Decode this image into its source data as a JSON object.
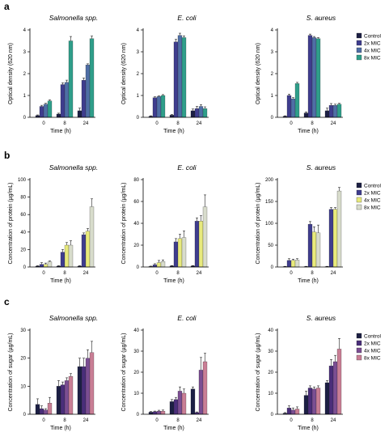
{
  "figure": {
    "panel_letters": [
      "a",
      "b",
      "c"
    ]
  },
  "chart_data": [
    {
      "id": "a1",
      "row": 0,
      "col": 0,
      "type": "bar",
      "title": "Salmonella spp.",
      "xlabel": "Time (h)",
      "ylabel": "Optical density (620 nm)",
      "categories": [
        "0",
        "8",
        "24"
      ],
      "ylim": [
        0,
        4
      ],
      "yticks": [
        0,
        1,
        2,
        3,
        4
      ],
      "series": [
        {
          "name": "Control",
          "color": "#1c1f44",
          "values": [
            0.08,
            0.15,
            0.3
          ],
          "errors": [
            0.03,
            0.04,
            0.12
          ]
        },
        {
          "name": "2x MIC",
          "color": "#3f3d8e",
          "values": [
            0.5,
            1.5,
            1.7
          ],
          "errors": [
            0.05,
            0.08,
            0.1
          ]
        },
        {
          "name": "4x MIC",
          "color": "#4f6ea5",
          "values": [
            0.6,
            1.6,
            2.4
          ],
          "errors": [
            0.04,
            0.1,
            0.05
          ]
        },
        {
          "name": "8x MIC",
          "color": "#2f9e8a",
          "values": [
            0.75,
            3.5,
            3.6
          ],
          "errors": [
            0.05,
            0.2,
            0.12
          ]
        }
      ]
    },
    {
      "id": "a2",
      "row": 0,
      "col": 1,
      "type": "bar",
      "title": "E. coli",
      "xlabel": "Time (h)",
      "ylabel": "Optical density (620 nm)",
      "categories": [
        "0",
        "8",
        "24"
      ],
      "ylim": [
        0,
        4
      ],
      "yticks": [
        0,
        1,
        2,
        3,
        4
      ],
      "series": [
        {
          "name": "Control",
          "color": "#1c1f44",
          "values": [
            0.05,
            0.1,
            0.3
          ],
          "errors": [
            0.02,
            0.03,
            0.08
          ]
        },
        {
          "name": "2x MIC",
          "color": "#3f3d8e",
          "values": [
            0.9,
            3.45,
            0.4
          ],
          "errors": [
            0.04,
            0.12,
            0.1
          ]
        },
        {
          "name": "4x MIC",
          "color": "#4f6ea5",
          "values": [
            0.95,
            3.75,
            0.5
          ],
          "errors": [
            0.03,
            0.1,
            0.08
          ]
        },
        {
          "name": "8x MIC",
          "color": "#2f9e8a",
          "values": [
            1.0,
            3.65,
            0.4
          ],
          "errors": [
            0.04,
            0.08,
            0.08
          ]
        }
      ]
    },
    {
      "id": "a3",
      "row": 0,
      "col": 2,
      "type": "bar",
      "title": "S. aureus",
      "xlabel": "Time (h)",
      "ylabel": "Optical density (620 nm)",
      "categories": [
        "0",
        "8",
        "24"
      ],
      "ylim": [
        0,
        4
      ],
      "yticks": [
        0,
        1,
        2,
        3,
        4
      ],
      "series": [
        {
          "name": "Control",
          "color": "#1c1f44",
          "values": [
            0.05,
            0.2,
            0.3
          ],
          "errors": [
            0.02,
            0.05,
            0.12
          ]
        },
        {
          "name": "2x MIC",
          "color": "#3f3d8e",
          "values": [
            1.0,
            3.75,
            0.55
          ],
          "errors": [
            0.06,
            0.06,
            0.08
          ]
        },
        {
          "name": "4x MIC",
          "color": "#4f6ea5",
          "values": [
            0.85,
            3.65,
            0.55
          ],
          "errors": [
            0.05,
            0.05,
            0.05
          ]
        },
        {
          "name": "8x MIC",
          "color": "#2f9e8a",
          "values": [
            1.55,
            3.6,
            0.6
          ],
          "errors": [
            0.05,
            0.05,
            0.04
          ]
        }
      ],
      "legend": {
        "position": "right"
      }
    },
    {
      "id": "b1",
      "row": 1,
      "col": 0,
      "type": "bar",
      "title": "Salmonella spp.",
      "xlabel": "Time (h)",
      "ylabel": "Concentration of protein (µg/mL)",
      "categories": [
        "0",
        "8",
        "24"
      ],
      "ylim": [
        0,
        100
      ],
      "yticks": [
        0,
        20,
        40,
        60,
        80,
        100
      ],
      "series": [
        {
          "name": "Control",
          "color": "#1c1f44",
          "values": [
            1,
            1,
            1
          ],
          "errors": [
            0.5,
            0.5,
            0.5
          ]
        },
        {
          "name": "2x MIC",
          "color": "#3f3d8e",
          "values": [
            3,
            17,
            37
          ],
          "errors": [
            2,
            3,
            2
          ]
        },
        {
          "name": "4x MIC",
          "color": "#e8ea7c",
          "values": [
            3,
            25,
            41
          ],
          "errors": [
            1.5,
            3,
            3
          ]
        },
        {
          "name": "8x MIC",
          "color": "#d8dccc",
          "values": [
            6,
            25,
            69
          ],
          "errors": [
            1,
            5,
            9
          ]
        }
      ]
    },
    {
      "id": "b2",
      "row": 1,
      "col": 1,
      "type": "bar",
      "title": "E. coli",
      "xlabel": "Time (h)",
      "ylabel": "Concentration of protein (µg/mL)",
      "categories": [
        "0",
        "8",
        "24"
      ],
      "ylim": [
        0,
        80
      ],
      "yticks": [
        0,
        20,
        40,
        60,
        80
      ],
      "series": [
        {
          "name": "Control",
          "color": "#1c1f44",
          "values": [
            0.5,
            1,
            1
          ],
          "errors": [
            0.3,
            0.3,
            0.3
          ]
        },
        {
          "name": "2x MIC",
          "color": "#3f3d8e",
          "values": [
            2,
            23,
            42
          ],
          "errors": [
            1,
            3,
            3
          ]
        },
        {
          "name": "4x MIC",
          "color": "#e8ea7c",
          "values": [
            4,
            26,
            42
          ],
          "errors": [
            2,
            4,
            5
          ]
        },
        {
          "name": "8x MIC",
          "color": "#d8dccc",
          "values": [
            5,
            27,
            55
          ],
          "errors": [
            1.5,
            6,
            11
          ]
        }
      ]
    },
    {
      "id": "b3",
      "row": 1,
      "col": 2,
      "type": "bar",
      "title": "S. aureus",
      "xlabel": "Time (h)",
      "ylabel": "Concentration of protein (µg/mL)",
      "categories": [
        "0",
        "8",
        "24"
      ],
      "ylim": [
        0,
        200
      ],
      "yticks": [
        0,
        50,
        100,
        150,
        200
      ],
      "series": [
        {
          "name": "Control",
          "color": "#1c1f44",
          "values": [
            1,
            1,
            1
          ],
          "errors": [
            0.5,
            0.5,
            0.5
          ]
        },
        {
          "name": "2x MIC",
          "color": "#3f3d8e",
          "values": [
            15,
            98,
            132
          ],
          "errors": [
            4,
            6,
            4
          ]
        },
        {
          "name": "4x MIC",
          "color": "#e8ea7c",
          "values": [
            15,
            80,
            132
          ],
          "errors": [
            3,
            12,
            4
          ]
        },
        {
          "name": "8x MIC",
          "color": "#d8dccc",
          "values": [
            16,
            78,
            174
          ],
          "errors": [
            3,
            18,
            8
          ]
        }
      ],
      "legend": {
        "position": "right"
      }
    },
    {
      "id": "c1",
      "row": 2,
      "col": 0,
      "type": "bar",
      "title": "Salmonella spp.",
      "xlabel": "Time (h)",
      "ylabel": "Concentration of sugar (µg/mL)",
      "categories": [
        "0",
        "8",
        "24"
      ],
      "ylim": [
        0,
        30
      ],
      "yticks": [
        0,
        10,
        20,
        30
      ],
      "series": [
        {
          "name": "Control",
          "color": "#1c1f44",
          "values": [
            3.5,
            10,
            17
          ],
          "errors": [
            2,
            2,
            3
          ]
        },
        {
          "name": "2x MIC",
          "color": "#4a2e7a",
          "values": [
            2,
            10.5,
            17
          ],
          "errors": [
            1,
            1,
            3
          ]
        },
        {
          "name": "4x MIC",
          "color": "#7b4e92",
          "values": [
            1.5,
            12,
            20
          ],
          "errors": [
            0.5,
            1,
            3
          ]
        },
        {
          "name": "8x MIC",
          "color": "#c97e95",
          "values": [
            4,
            13.5,
            22
          ],
          "errors": [
            2,
            1,
            4
          ]
        }
      ]
    },
    {
      "id": "c2",
      "row": 2,
      "col": 1,
      "type": "bar",
      "title": "E. coli",
      "xlabel": "Time (h)",
      "ylabel": "Concentration of sugar (µg/mL)",
      "categories": [
        "0",
        "8",
        "24"
      ],
      "ylim": [
        0,
        40
      ],
      "yticks": [
        0,
        10,
        20,
        30,
        40
      ],
      "series": [
        {
          "name": "Control",
          "color": "#1c1f44",
          "values": [
            1,
            6,
            12
          ],
          "errors": [
            0.3,
            1,
            1
          ]
        },
        {
          "name": "2x MIC",
          "color": "#4a2e7a",
          "values": [
            1.2,
            7,
            0.8
          ],
          "errors": [
            0.3,
            1,
            0.3
          ]
        },
        {
          "name": "4x MIC",
          "color": "#7b4e92",
          "values": [
            1.5,
            11,
            21
          ],
          "errors": [
            0.4,
            2,
            6
          ]
        },
        {
          "name": "8x MIC",
          "color": "#c97e95",
          "values": [
            1.5,
            10,
            25
          ],
          "errors": [
            0.5,
            2,
            4
          ]
        }
      ]
    },
    {
      "id": "c3",
      "row": 2,
      "col": 2,
      "type": "bar",
      "title": "S. aureus",
      "xlabel": "Time (h)",
      "ylabel": "Concentration of sugar (µg/mL)",
      "categories": [
        "0",
        "8",
        "24"
      ],
      "ylim": [
        0,
        40
      ],
      "yticks": [
        0,
        10,
        20,
        30,
        40
      ],
      "series": [
        {
          "name": "Control",
          "color": "#1c1f44",
          "values": [
            0.5,
            9,
            15
          ],
          "errors": [
            0.3,
            2,
            1
          ]
        },
        {
          "name": "2x MIC",
          "color": "#4a2e7a",
          "values": [
            3,
            12.5,
            23
          ],
          "errors": [
            1,
            1,
            3
          ]
        },
        {
          "name": "4x MIC",
          "color": "#7b4e92",
          "values": [
            2,
            12,
            25
          ],
          "errors": [
            1,
            1,
            3
          ]
        },
        {
          "name": "8x MIC",
          "color": "#c97e95",
          "values": [
            2.5,
            12.5,
            31
          ],
          "errors": [
            1,
            1,
            5
          ]
        }
      ],
      "legend": {
        "position": "right"
      }
    }
  ]
}
